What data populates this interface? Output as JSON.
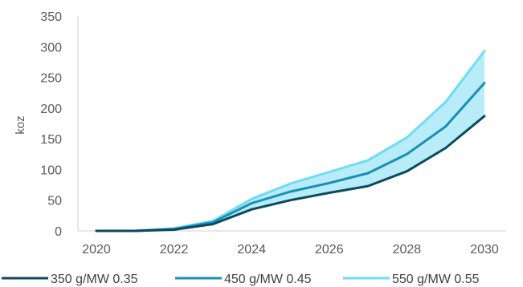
{
  "chart_data": {
    "type": "line",
    "title": "",
    "xlabel": "",
    "ylabel": "koz",
    "xlim": [
      2020,
      2030
    ],
    "ylim": [
      0,
      350
    ],
    "yticks": [
      0,
      50,
      100,
      150,
      200,
      250,
      300,
      350
    ],
    "xticks": [
      2020,
      2022,
      2024,
      2026,
      2028,
      2030
    ],
    "x": [
      2020,
      2021,
      2022,
      2023,
      2024,
      2025,
      2026,
      2027,
      2028,
      2029,
      2030
    ],
    "series": [
      {
        "name": "350 g/MW 0.35",
        "color": "#0b4a5e",
        "values": [
          0,
          0,
          2,
          11,
          35,
          50,
          62,
          73,
          97,
          135,
          187
        ]
      },
      {
        "name": "450 g/MW 0.45",
        "color": "#1a8fb3",
        "values": [
          0,
          0,
          3,
          14,
          45,
          64,
          78,
          94,
          125,
          170,
          241
        ]
      },
      {
        "name": "550 g/MW 0.55",
        "color": "#6fdcf3",
        "values": [
          0,
          0,
          4,
          16,
          52,
          77,
          96,
          115,
          152,
          210,
          293
        ]
      }
    ],
    "band": {
      "between": [
        "350 g/MW 0.35",
        "550 g/MW 0.55"
      ],
      "color": "#b7ecf8"
    },
    "grid": false,
    "legend": "bottom"
  }
}
